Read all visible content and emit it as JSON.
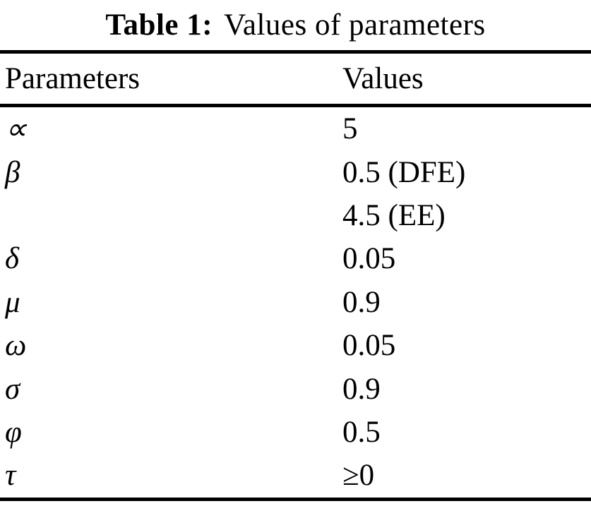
{
  "caption": {
    "label": "Table 1:",
    "text": "Values of parameters"
  },
  "table": {
    "headers": {
      "param": "Parameters",
      "value": "Values"
    },
    "rows": [
      {
        "param": "∝",
        "value": "5"
      },
      {
        "param": "β",
        "value": "0.5 (DFE)"
      },
      {
        "param": "",
        "value": "4.5 (EE)"
      },
      {
        "param": "δ",
        "value": "0.05"
      },
      {
        "param": "μ",
        "value": "0.9"
      },
      {
        "param": "ω",
        "value": "0.05"
      },
      {
        "param": "σ",
        "value": "0.9"
      },
      {
        "param": "φ",
        "value": "0.5"
      },
      {
        "param": "τ",
        "value": "≥0"
      }
    ]
  },
  "colors": {
    "text": "#000000",
    "background": "#ffffff",
    "rule": "#000000"
  }
}
